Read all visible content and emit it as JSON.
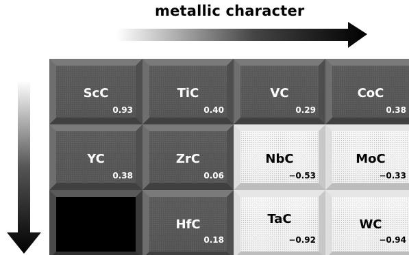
{
  "title": "metallic character",
  "tiles": [
    {
      "name": "ScC",
      "value": "0.93"
    },
    {
      "name": "TiC",
      "value": "0.40"
    },
    {
      "name": "VC",
      "value": "0.29"
    },
    {
      "name": "CoC",
      "value": "0.38"
    },
    {
      "name": "YC",
      "value": "0.38"
    },
    {
      "name": "ZrC",
      "value": "0.06"
    },
    {
      "name": "NbC",
      "value": "−0.53"
    },
    {
      "name": "MoC",
      "value": "−0.33"
    },
    {
      "name": "HfC",
      "value": "0.18"
    },
    {
      "name": "TaC",
      "value": "−0.92"
    },
    {
      "name": "WC",
      "value": "−0.94"
    }
  ]
}
